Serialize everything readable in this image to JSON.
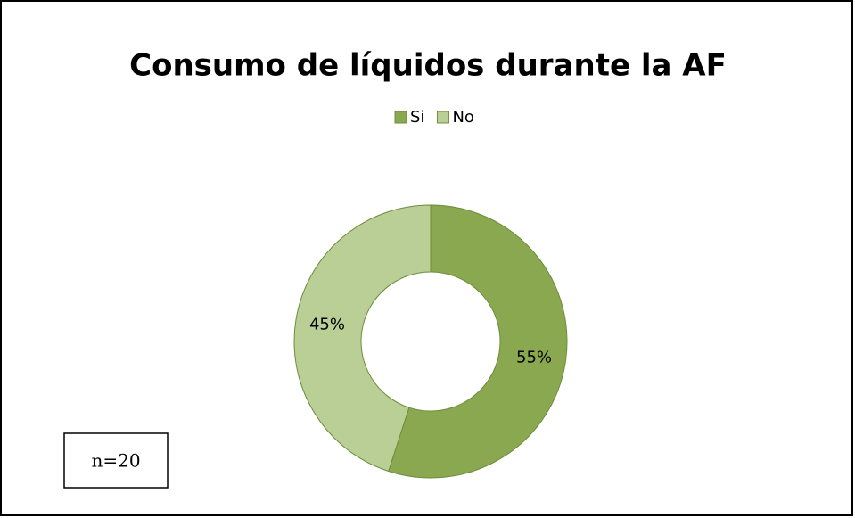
{
  "chart_data": {
    "type": "pie",
    "donut": true,
    "title": "Consumo de líquidos durante la AF",
    "categories": [
      "Si",
      "No"
    ],
    "values": [
      55,
      45
    ],
    "value_labels": [
      "55%",
      "45%"
    ],
    "colors": [
      "#8aa84f",
      "#b9cf96"
    ],
    "legend": "top",
    "annotation": "n=20"
  }
}
